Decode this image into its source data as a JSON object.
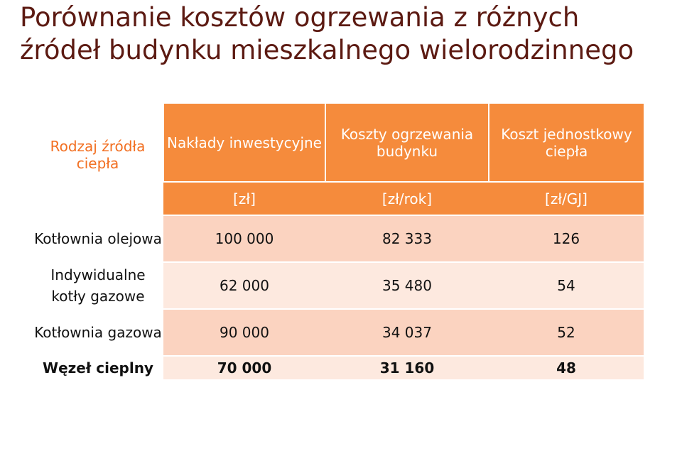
{
  "title": {
    "line1": "Porównanie kosztów ogrzewania z różnych",
    "line2": "źródeł budynku mieszkalnego wielorodzinnego"
  },
  "table": {
    "headers": {
      "source": "Rodzaj źródła ciepła",
      "investment": "Nakłady inwestycyjne",
      "heating_costs": "Koszty ogrzewania budynku",
      "unit_cost": "Koszt jednostkowy ciepła"
    },
    "units": {
      "investment": "[zł]",
      "heating_costs": "[zł/rok]",
      "unit_cost": "[zł/GJ]"
    },
    "rows": [
      {
        "source": "Kotłownia olejowa",
        "investment": "100 000",
        "heating_costs": "82 333",
        "unit_cost": "126"
      },
      {
        "source": "Indywidualne kotły gazowe",
        "investment": "62 000",
        "heating_costs": "35 480",
        "unit_cost": "54"
      },
      {
        "source": "Kotłownia gazowa",
        "investment": "90 000",
        "heating_costs": "34 037",
        "unit_cost": "52"
      },
      {
        "source": "Węzeł cieplny",
        "investment": "70 000",
        "heating_costs": "31 160",
        "unit_cost": "48"
      }
    ]
  },
  "colors": {
    "header_orange": "#f58b3c",
    "row_shade": "#fbd3c0",
    "row_light": "#fde9df",
    "title_brown": "#5c1a12"
  }
}
